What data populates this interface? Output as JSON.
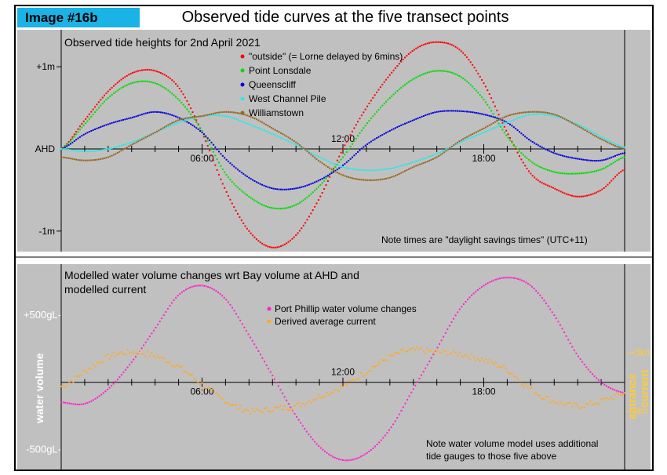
{
  "header": {
    "tag": "Image #16b",
    "title": "Observed tide curves at the five transect points"
  },
  "chart_data": [
    {
      "type": "scatter",
      "title": "Observed tide heights for 2nd April 2021",
      "x_unit": "hours",
      "xlim": [
        0,
        24
      ],
      "ylim": [
        -1.25,
        1.45
      ],
      "x_tick_labels": [
        {
          "hour": 6,
          "label": "06:00"
        },
        {
          "hour": 12,
          "label": "12:00"
        },
        {
          "hour": 18,
          "label": "18:00"
        }
      ],
      "y_tick_labels": [
        {
          "value": 1,
          "label": "+1m"
        },
        {
          "value": 0,
          "label": "AHD"
        },
        {
          "value": -1,
          "label": "-1m"
        }
      ],
      "note": "Note times are \"daylight savings times\" (UTC+11)",
      "series": [
        {
          "name": "\"outside\" (= Lorne delayed by 6mins)",
          "color": "#ff0000",
          "x": [
            0,
            1,
            2,
            3,
            4,
            5,
            6,
            7,
            8,
            9,
            10,
            11,
            12,
            13,
            14,
            15,
            16,
            17,
            18,
            19,
            20,
            21,
            22,
            23,
            24
          ],
          "y": [
            0.0,
            0.35,
            0.7,
            0.92,
            0.95,
            0.75,
            0.2,
            -0.5,
            -1.0,
            -1.2,
            -1.05,
            -0.6,
            0.0,
            0.5,
            0.9,
            1.2,
            1.3,
            1.2,
            0.8,
            0.2,
            -0.3,
            -0.48,
            -0.58,
            -0.5,
            -0.25
          ]
        },
        {
          "name": "Point Lonsdale",
          "color": "#00dd00",
          "x": [
            0,
            1,
            2,
            3,
            4,
            5,
            6,
            7,
            8,
            9,
            10,
            11,
            12,
            13,
            14,
            15,
            16,
            17,
            18,
            19,
            20,
            21,
            22,
            23,
            24
          ],
          "y": [
            0.0,
            0.3,
            0.62,
            0.8,
            0.8,
            0.6,
            0.22,
            -0.3,
            -0.58,
            -0.72,
            -0.68,
            -0.45,
            -0.1,
            0.3,
            0.62,
            0.85,
            0.95,
            0.88,
            0.6,
            0.15,
            -0.15,
            -0.28,
            -0.3,
            -0.25,
            -0.1
          ]
        },
        {
          "name": "Queenscliff",
          "color": "#0000dd",
          "x": [
            0,
            1,
            2,
            3,
            4,
            5,
            6,
            7,
            8,
            9,
            10,
            11,
            12,
            13,
            14,
            15,
            16,
            17,
            18,
            19,
            20,
            21,
            22,
            23,
            24
          ],
          "y": [
            0.0,
            0.18,
            0.3,
            0.38,
            0.45,
            0.38,
            0.2,
            -0.12,
            -0.35,
            -0.48,
            -0.48,
            -0.38,
            -0.2,
            0.05,
            0.22,
            0.35,
            0.45,
            0.46,
            0.42,
            0.32,
            0.1,
            -0.05,
            -0.12,
            -0.14,
            -0.05
          ]
        },
        {
          "name": "West Channel Pile",
          "color": "#33e6e6",
          "x": [
            0,
            1,
            2,
            3,
            4,
            5,
            6,
            7,
            8,
            9,
            10,
            11,
            12,
            13,
            14,
            15,
            16,
            17,
            18,
            19,
            20,
            21,
            22,
            23,
            24
          ],
          "y": [
            0.0,
            -0.03,
            0.0,
            0.08,
            0.2,
            0.32,
            0.4,
            0.4,
            0.3,
            0.18,
            0.05,
            -0.1,
            -0.22,
            -0.26,
            -0.24,
            -0.16,
            -0.06,
            0.08,
            0.2,
            0.32,
            0.42,
            0.4,
            0.3,
            0.15,
            0.02
          ]
        },
        {
          "name": "Williamstown",
          "color": "#996622",
          "x": [
            0,
            1,
            2,
            3,
            4,
            5,
            6,
            7,
            8,
            9,
            10,
            11,
            12,
            13,
            14,
            15,
            16,
            17,
            18,
            19,
            20,
            21,
            22,
            23,
            24
          ],
          "y": [
            -0.1,
            -0.14,
            -0.1,
            0.05,
            0.2,
            0.35,
            0.4,
            0.45,
            0.4,
            0.25,
            0.08,
            -0.15,
            -0.32,
            -0.38,
            -0.35,
            -0.22,
            -0.1,
            0.1,
            0.25,
            0.4,
            0.45,
            0.42,
            0.28,
            0.12,
            0.0
          ]
        }
      ]
    },
    {
      "type": "scatter",
      "title": "Modelled water volume changes wrt Bay volume at AHD and modelled current",
      "x_unit": "hours",
      "xlim": [
        0,
        24
      ],
      "ylim": [
        -650,
        880
      ],
      "y2lim": [
        -9,
        12
      ],
      "x_tick_labels": [
        {
          "hour": 6,
          "label": "06:00"
        },
        {
          "hour": 12,
          "label": "12:00"
        },
        {
          "hour": 18,
          "label": "18:00"
        }
      ],
      "y_tick_labels": [
        {
          "value": 500,
          "label": "+500gL-"
        },
        {
          "value": -500,
          "label": "-500gL-"
        }
      ],
      "y2_tick_labels": [
        {
          "value": 3,
          "label": "-+3kn"
        },
        {
          "value": -3,
          "label": "--3kn"
        }
      ],
      "ylabel": "water volume",
      "y2label": "entrance current",
      "note": "Note water volume model uses additional tide gauges to those five above",
      "series": [
        {
          "name": "Port Phillip water volume changes",
          "color": "#ff22cc",
          "axis": "left",
          "x": [
            0,
            1,
            2,
            3,
            4,
            5,
            6,
            7,
            8,
            9,
            10,
            11,
            12,
            13,
            14,
            15,
            16,
            17,
            18,
            19,
            20,
            21,
            22,
            23,
            24
          ],
          "y": [
            -150,
            -160,
            -50,
            150,
            400,
            650,
            720,
            620,
            350,
            50,
            -250,
            -480,
            -580,
            -530,
            -350,
            -50,
            250,
            550,
            720,
            780,
            720,
            500,
            200,
            0,
            -80
          ]
        },
        {
          "name": "Derived average current",
          "color": "#ffaa22",
          "axis": "right",
          "x": [
            0,
            1,
            2,
            3,
            4,
            5,
            6,
            7,
            8,
            9,
            10,
            11,
            12,
            13,
            14,
            15,
            16,
            17,
            18,
            19,
            20,
            21,
            22,
            23,
            24
          ],
          "y": [
            -0.5,
            1.0,
            2.5,
            3.0,
            2.6,
            1.5,
            -0.3,
            -2.0,
            -3.0,
            -2.8,
            -2.5,
            -1.5,
            -0.5,
            1.0,
            2.5,
            3.2,
            3.0,
            2.8,
            2.2,
            1.2,
            -0.8,
            -2.0,
            -2.5,
            -2.0,
            -1.2
          ]
        }
      ]
    }
  ]
}
